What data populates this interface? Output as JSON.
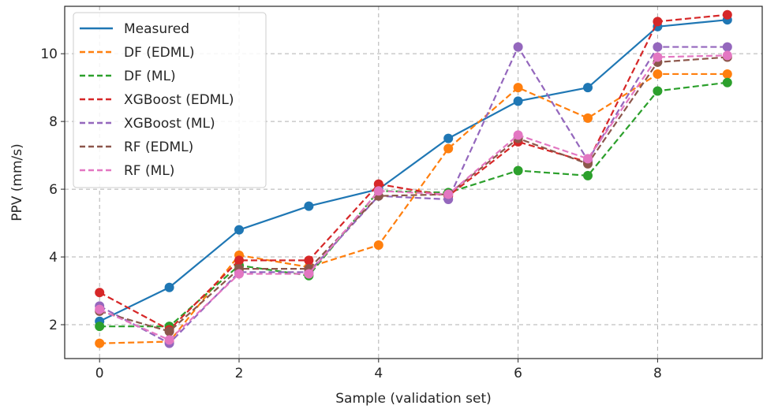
{
  "chart_data": {
    "type": "line",
    "title": "",
    "xlabel": "Sample (validation set)",
    "ylabel": "PPV (mm/s)",
    "xlim": [
      -0.5,
      9.5
    ],
    "ylim": [
      1.0,
      11.4
    ],
    "xticks": [
      0,
      2,
      4,
      6,
      8
    ],
    "yticks": [
      2,
      4,
      6,
      8,
      10
    ],
    "grid": true,
    "legend_position": "top-left",
    "x": [
      0,
      1,
      2,
      3,
      4,
      5,
      6,
      7,
      8,
      9
    ],
    "series": [
      {
        "name": "Measured",
        "color": "#1f77b4",
        "style": "solid",
        "values": [
          2.1,
          3.1,
          4.8,
          5.5,
          6.0,
          7.5,
          8.6,
          9.0,
          10.8,
          11.0
        ]
      },
      {
        "name": "DF (EDML)",
        "color": "#ff7f0e",
        "style": "dashed",
        "values": [
          1.45,
          1.5,
          4.05,
          3.7,
          4.35,
          7.2,
          9.0,
          8.1,
          9.4,
          9.4
        ]
      },
      {
        "name": "DF (ML)",
        "color": "#2ca02c",
        "style": "dashed",
        "values": [
          1.95,
          1.95,
          3.75,
          3.45,
          5.95,
          5.9,
          6.55,
          6.4,
          8.9,
          9.15
        ]
      },
      {
        "name": "XGBoost (EDML)",
        "color": "#d62728",
        "style": "dashed",
        "values": [
          2.95,
          1.85,
          3.9,
          3.9,
          6.15,
          5.8,
          7.4,
          6.8,
          10.95,
          11.15
        ]
      },
      {
        "name": "XGBoost (ML)",
        "color": "#9467bd",
        "style": "dashed",
        "values": [
          2.55,
          1.45,
          3.55,
          3.55,
          5.8,
          5.7,
          10.2,
          6.85,
          10.2,
          10.2
        ]
      },
      {
        "name": "RF (EDML)",
        "color": "#8c564b",
        "style": "dashed",
        "values": [
          2.4,
          1.8,
          3.65,
          3.65,
          5.8,
          5.85,
          7.5,
          6.75,
          9.75,
          9.9
        ]
      },
      {
        "name": "RF (ML)",
        "color": "#e377c2",
        "style": "dashed",
        "values": [
          2.45,
          1.55,
          3.5,
          3.5,
          5.95,
          5.85,
          7.6,
          6.9,
          9.9,
          9.95
        ]
      }
    ]
  }
}
